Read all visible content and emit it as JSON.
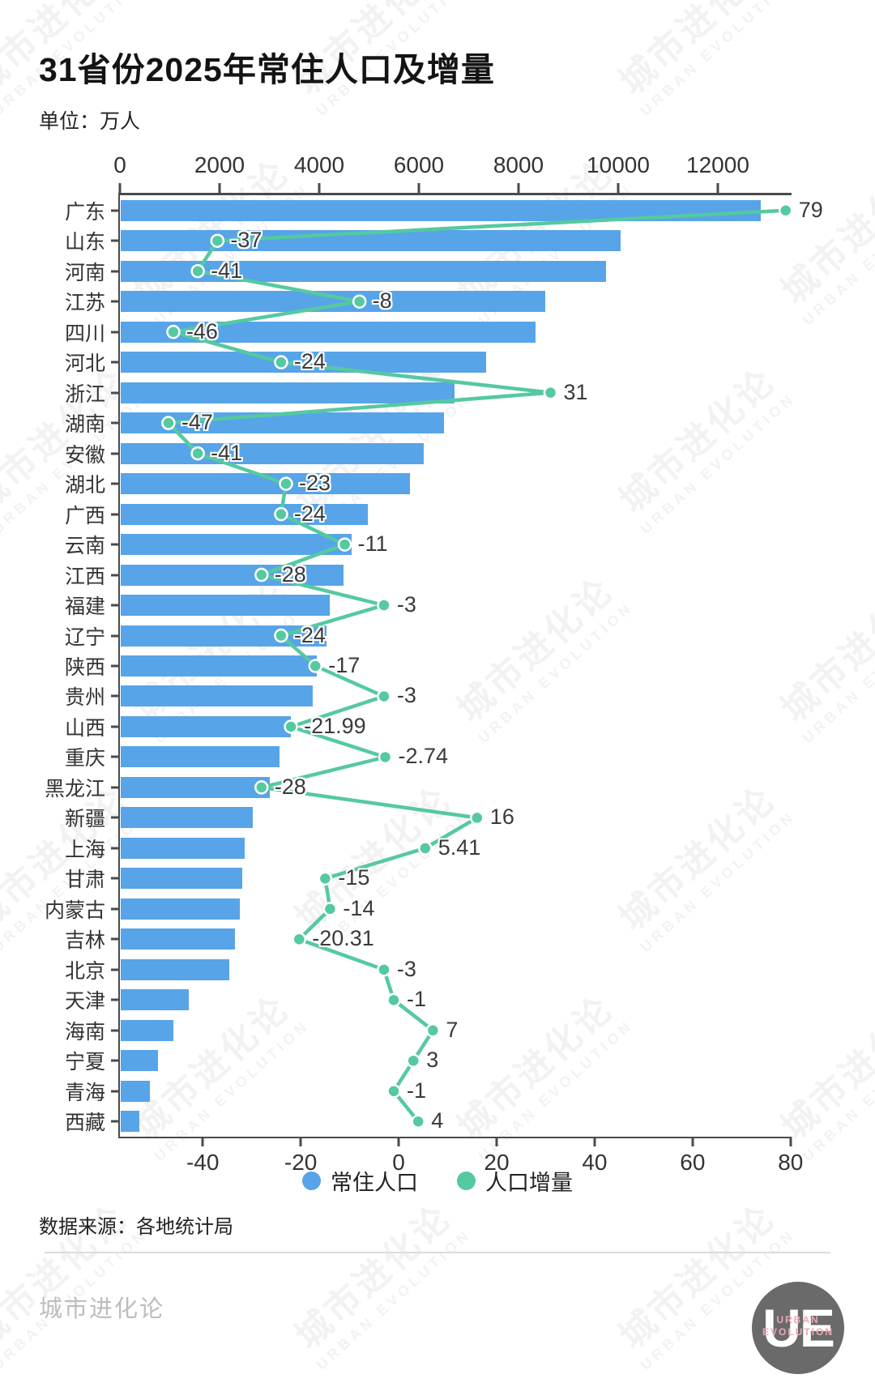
{
  "header": {
    "title": "31省份2025年常住人口及增量",
    "unit_label": "单位：万人"
  },
  "chart_data": {
    "type": "bar",
    "orientation": "horizontal",
    "title": "31省份2025年常住人口及增量",
    "unit": "万人",
    "categories": [
      "广东",
      "山东",
      "河南",
      "江苏",
      "四川",
      "河北",
      "浙江",
      "湖南",
      "安徽",
      "湖北",
      "广西",
      "云南",
      "江西",
      "福建",
      "辽宁",
      "陕西",
      "贵州",
      "山西",
      "重庆",
      "黑龙江",
      "新疆",
      "上海",
      "甘肃",
      "内蒙古",
      "吉林",
      "北京",
      "天津",
      "海南",
      "宁夏",
      "青海",
      "西藏"
    ],
    "series": [
      {
        "name": "常住人口",
        "type": "bar",
        "color": "#57a4e8",
        "values": [
          12850,
          10040,
          9740,
          8515,
          8320,
          7340,
          6700,
          6480,
          6080,
          5800,
          4960,
          4630,
          4470,
          4190,
          4130,
          3940,
          3860,
          3410,
          3190,
          3000,
          2650,
          2480,
          2440,
          2390,
          2300,
          2180,
          1360,
          1060,
          745,
          590,
          370
        ]
      },
      {
        "name": "人口增量",
        "type": "line",
        "color": "#55c9a0",
        "values": [
          79,
          -37,
          -41,
          -8,
          -46,
          -24,
          31,
          -47,
          -41,
          -23,
          -24,
          -11,
          -28,
          -3,
          -24,
          -17,
          -3,
          -21.99,
          -2.74,
          -28,
          16,
          5.41,
          -15,
          -14,
          -20.31,
          -3,
          -1,
          7,
          3,
          -1,
          4
        ],
        "labels": [
          "79",
          "-37",
          "-41",
          "-8",
          "-46",
          "-24",
          "31",
          "-47",
          "-41",
          "-23",
          "-24",
          "-11",
          "-28",
          "-3",
          "-24",
          "-17",
          "-3",
          "-21.99",
          "-2.74",
          "-28",
          "16",
          "5.41",
          "-15",
          "-14",
          "-20.31",
          "-3",
          "-1",
          "7",
          "3",
          "-1",
          "4"
        ]
      }
    ],
    "top_axis": {
      "ticks": [
        0,
        2000,
        4000,
        6000,
        8000,
        10000,
        12000
      ],
      "range": [
        0,
        13480
      ]
    },
    "bottom_axis": {
      "ticks": [
        -40,
        -20,
        0,
        20,
        40,
        60,
        80
      ],
      "range": [
        -56.9,
        80.2
      ]
    },
    "legend": {
      "position": "bottom",
      "entries": [
        "常住人口",
        "人口增量"
      ]
    },
    "grid": false
  },
  "source": {
    "text": "数据来源：各地统计局"
  },
  "watermark": {
    "line1": "城市进化论",
    "line2": "URBAN EVOLUTION"
  },
  "footer": {
    "brand": "城市进化论",
    "logo": {
      "monogram": "UE",
      "caption_line1": "URBAN",
      "caption_line2": "EVOLUTION"
    }
  }
}
